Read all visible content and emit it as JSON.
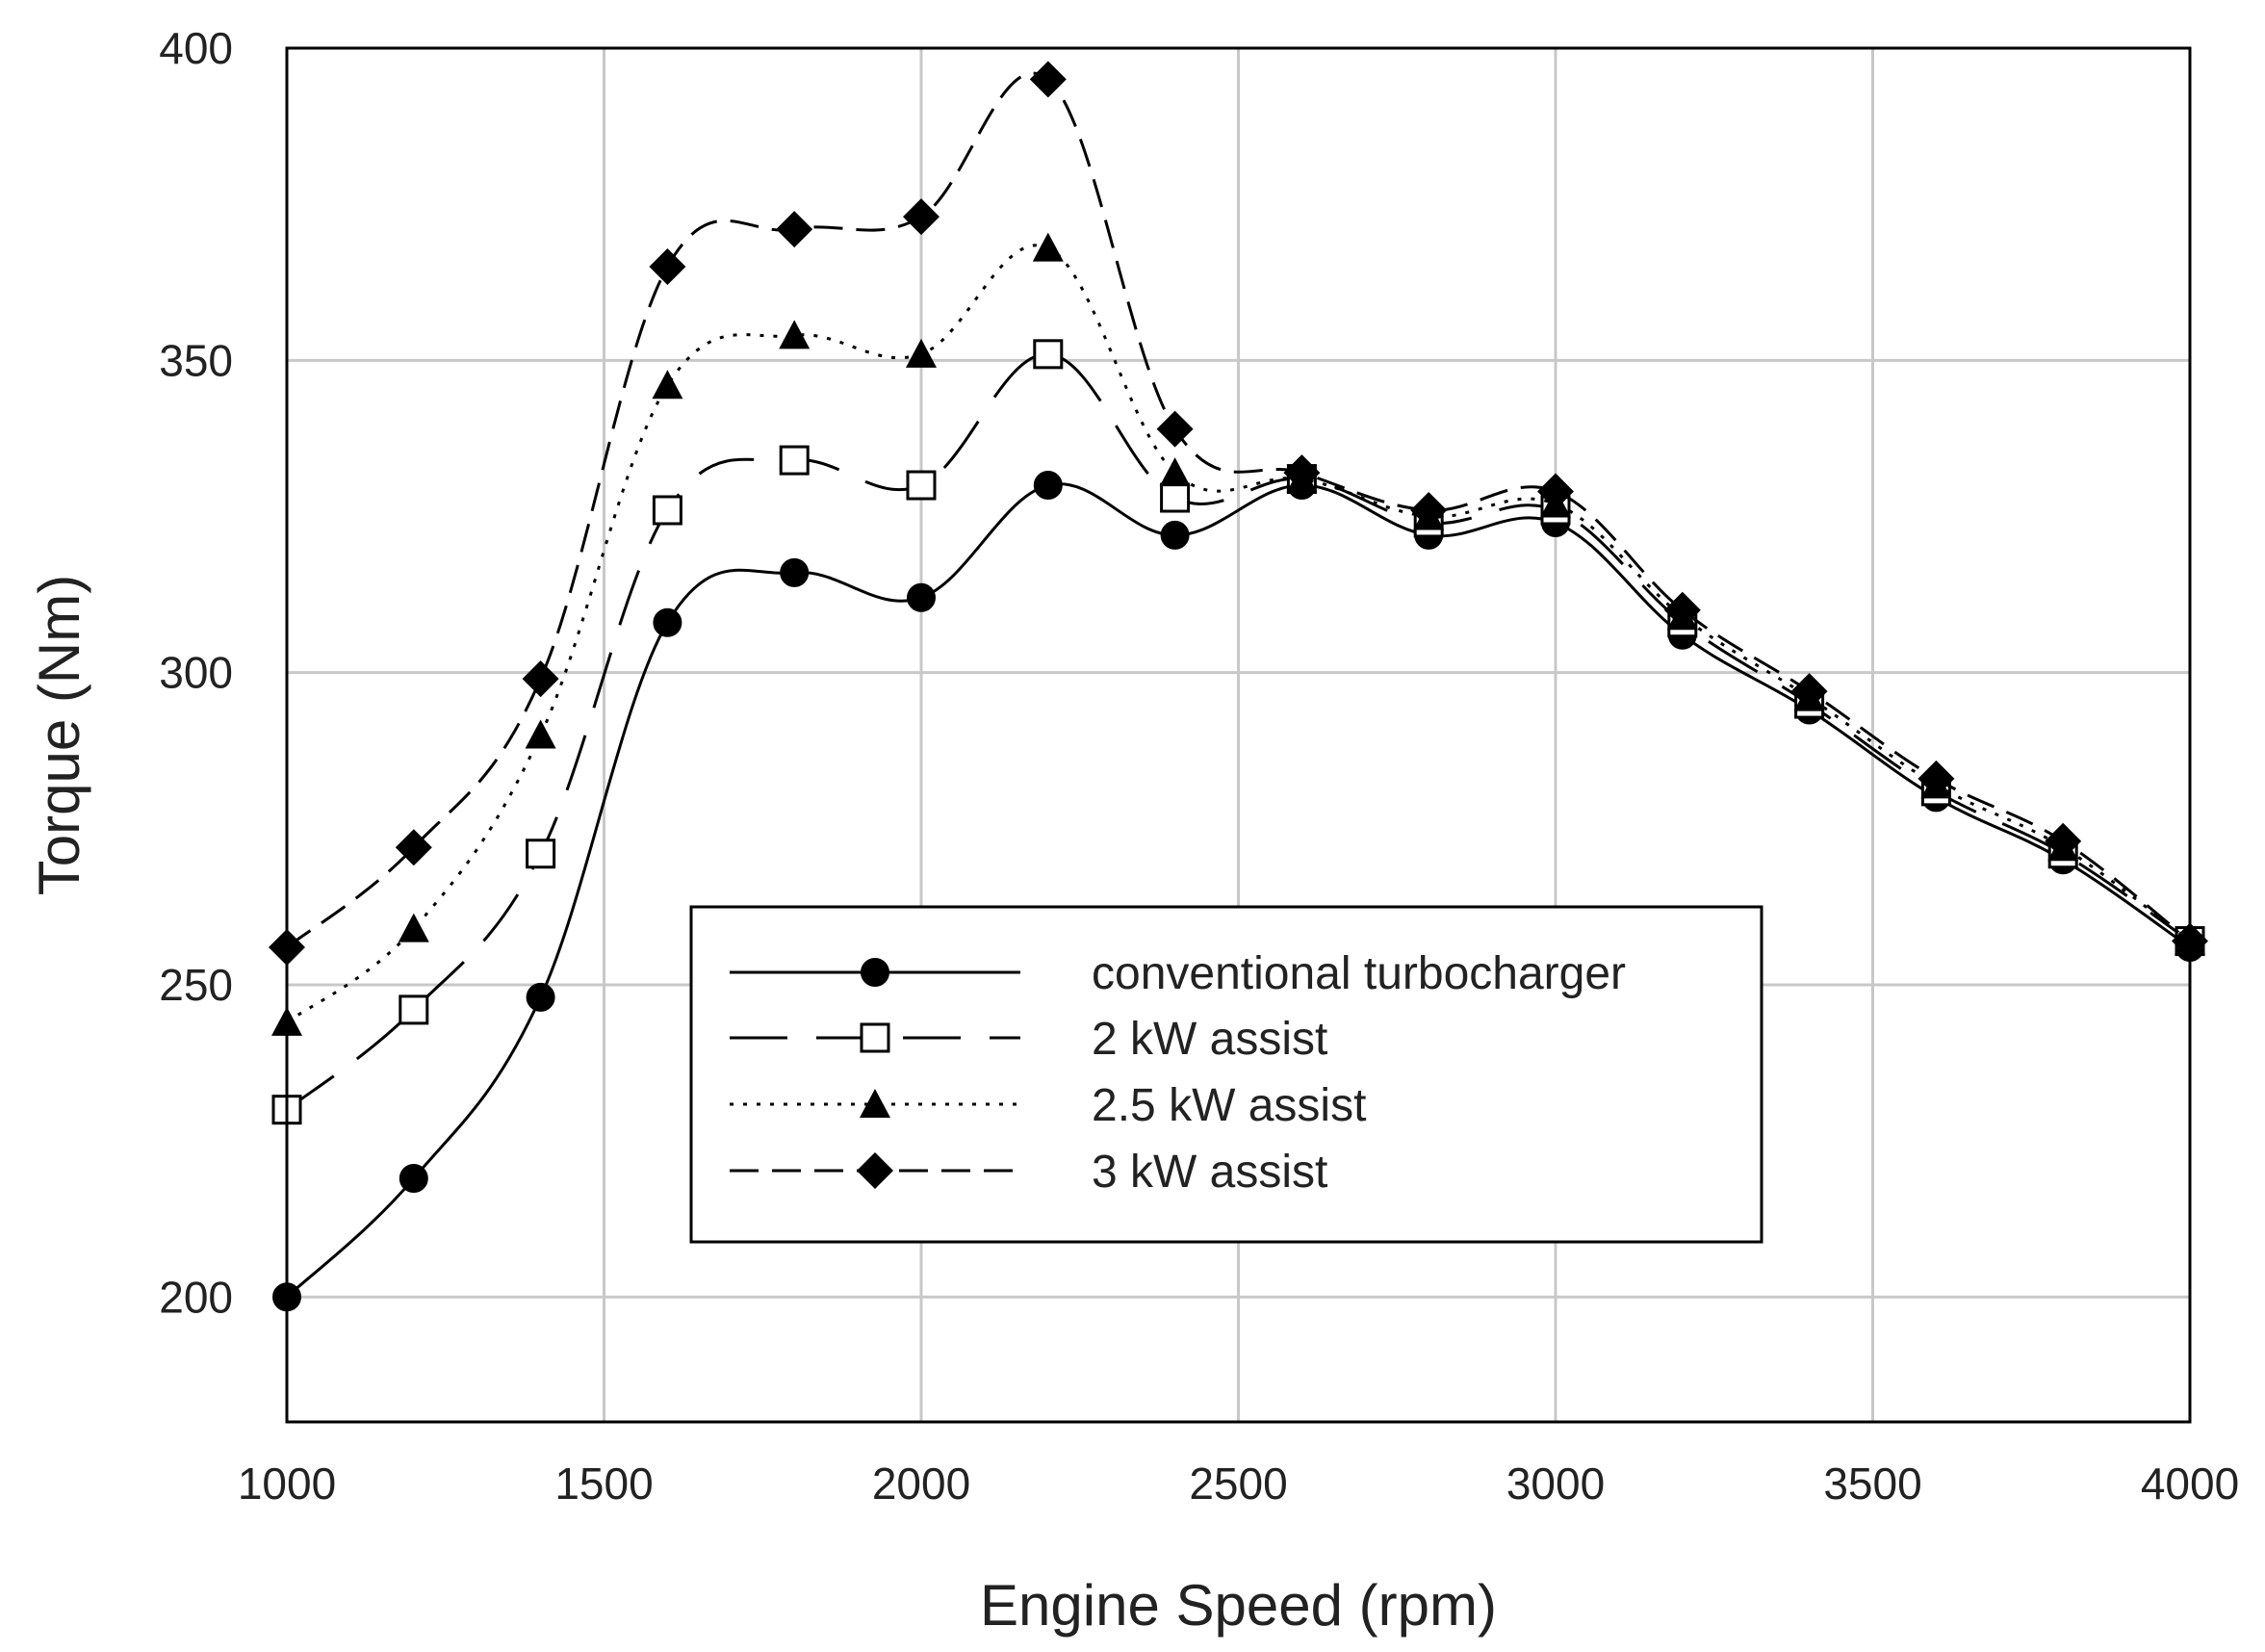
{
  "chart_data": {
    "type": "line",
    "title": "",
    "xlabel": "Engine Speed (rpm)",
    "ylabel": "Torque (Nm)",
    "xlim": [
      1000,
      4000
    ],
    "ylim": [
      180,
      400
    ],
    "xticks": [
      1000,
      1500,
      2000,
      2500,
      3000,
      3500,
      4000
    ],
    "yticks": [
      200,
      250,
      300,
      350,
      400
    ],
    "grid": true,
    "legend_position": "center",
    "x": [
      1000,
      1200,
      1400,
      1600,
      1800,
      2000,
      2200,
      2400,
      2600,
      2800,
      3000,
      3200,
      3400,
      3600,
      3800,
      4000
    ],
    "series": [
      {
        "name": "conventional turbocharger",
        "marker": "circle-filled",
        "dash": "solid",
        "values": [
          200,
          219,
          248,
          308,
          316,
          312,
          330,
          322,
          330,
          322,
          324,
          306,
          294,
          280,
          270,
          256
        ]
      },
      {
        "name": "2 kW assist",
        "marker": "square-open",
        "dash": "long-dash",
        "values": [
          230,
          246,
          271,
          326,
          334,
          330,
          351,
          328,
          331,
          324,
          326,
          308,
          295,
          281,
          271,
          257
        ]
      },
      {
        "name": "2.5 kW assist",
        "marker": "triangle-filled",
        "dash": "dotted",
        "values": [
          244,
          259,
          290,
          346,
          354,
          351,
          368,
          332,
          331,
          325,
          327,
          309,
          296,
          282,
          272,
          257
        ]
      },
      {
        "name": "3 kW assist",
        "marker": "diamond-filled",
        "dash": "dash",
        "values": [
          256,
          272,
          299,
          365,
          371,
          373,
          395,
          339,
          332,
          326,
          329,
          310,
          297,
          283,
          273,
          257
        ]
      }
    ]
  }
}
